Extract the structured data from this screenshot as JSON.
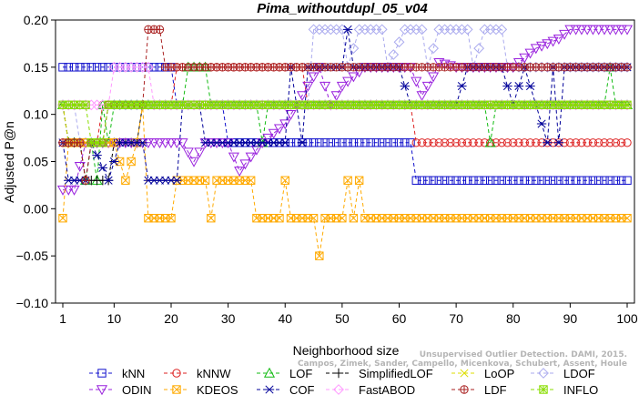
{
  "chart_data": {
    "type": "line",
    "title": "Pima_withoutdupl_05_v04",
    "xlabel": "Neighborhood size",
    "ylabel": "Adjusted P@n",
    "xlim": [
      0,
      101
    ],
    "ylim": [
      -0.1,
      0.2
    ],
    "xticks": [
      1,
      10,
      20,
      30,
      40,
      50,
      60,
      70,
      80,
      90,
      100
    ],
    "yticks": [
      -0.1,
      -0.05,
      0.0,
      0.05,
      0.1,
      0.15,
      0.2
    ],
    "ytick_labels": [
      "−0.10",
      "−0.05",
      "0.00",
      "0.05",
      "0.10",
      "0.15",
      "0.20"
    ],
    "legend_position": "bottom",
    "watermark": {
      "line1": "Unsupervised Outlier Detection. DAMI, 2015.",
      "line2": "Campos, Zimek, Sander, Campello, Micenkova, Schubert, Assent, Houle"
    },
    "series": [
      {
        "name": "kNN",
        "color": "#1111cc",
        "marker": "square",
        "points": [
          [
            1,
            0.15
          ],
          [
            20,
            0.15
          ],
          [
            21,
            0.11
          ],
          [
            29,
            0.11
          ],
          [
            30,
            0.07
          ],
          [
            62,
            0.07
          ],
          [
            63,
            0.03
          ],
          [
            100,
            0.03
          ]
        ]
      },
      {
        "name": "kNNW",
        "color": "#dd2222",
        "marker": "circle",
        "points": [
          [
            1,
            0.07
          ],
          [
            7,
            0.07
          ],
          [
            8,
            0.11
          ],
          [
            20,
            0.11
          ],
          [
            21,
            0.15
          ],
          [
            43,
            0.15
          ],
          [
            44,
            0.11
          ],
          [
            62,
            0.11
          ],
          [
            63,
            0.07
          ],
          [
            100,
            0.07
          ]
        ]
      },
      {
        "name": "LOF",
        "color": "#11bb11",
        "marker": "triangle-up",
        "points": [
          [
            1,
            0.11
          ],
          [
            2,
            0.07
          ],
          [
            4,
            0.07
          ],
          [
            5,
            0.03
          ],
          [
            6,
            0.07
          ],
          [
            7,
            0.03
          ],
          [
            8,
            0.11
          ],
          [
            9,
            0.07
          ],
          [
            10,
            0.11
          ],
          [
            22,
            0.11
          ],
          [
            23,
            0.15
          ],
          [
            26,
            0.15
          ],
          [
            27,
            0.11
          ],
          [
            35,
            0.11
          ],
          [
            36,
            0.07
          ],
          [
            37,
            0.11
          ],
          [
            75,
            0.11
          ],
          [
            76,
            0.07
          ],
          [
            77,
            0.11
          ],
          [
            96,
            0.11
          ],
          [
            97,
            0.15
          ],
          [
            98,
            0.11
          ],
          [
            100,
            0.11
          ]
        ]
      },
      {
        "name": "SimplifiedLOF",
        "color": "#000000",
        "marker": "plus",
        "points": [
          [
            1,
            0.11
          ],
          [
            2,
            0.07
          ],
          [
            4,
            0.07
          ],
          [
            5,
            0.03
          ],
          [
            9,
            0.03
          ],
          [
            10,
            0.07
          ],
          [
            14,
            0.07
          ],
          [
            15,
            0.11
          ],
          [
            100,
            0.11
          ]
        ]
      },
      {
        "name": "LoOP",
        "color": "#dddd00",
        "marker": "cross",
        "points": [
          [
            1,
            0.11
          ],
          [
            2,
            0.07
          ],
          [
            8,
            0.07
          ],
          [
            9,
            0.11
          ],
          [
            100,
            0.11
          ]
        ]
      },
      {
        "name": "LDOF",
        "color": "#aaaaee",
        "marker": "diamond",
        "points": [
          [
            1,
            0.11
          ],
          [
            3,
            0.11
          ],
          [
            4,
            0.07
          ],
          [
            8,
            0.07
          ],
          [
            9,
            0.11
          ],
          [
            44,
            0.11
          ],
          [
            45,
            0.19
          ],
          [
            50,
            0.19
          ],
          [
            51,
            0.15
          ],
          [
            53,
            0.19
          ],
          [
            57,
            0.19
          ],
          [
            58,
            0.15
          ],
          [
            61,
            0.19
          ],
          [
            64,
            0.19
          ],
          [
            65,
            0.15
          ],
          [
            67,
            0.19
          ],
          [
            72,
            0.19
          ],
          [
            73,
            0.15
          ],
          [
            75,
            0.19
          ],
          [
            78,
            0.19
          ],
          [
            79,
            0.15
          ],
          [
            100,
            0.15
          ]
        ]
      },
      {
        "name": "ODIN",
        "color": "#9922dd",
        "marker": "triangle-down",
        "points": [
          [
            1,
            0.02
          ],
          [
            2,
            0.02
          ],
          [
            3,
            0.02
          ],
          [
            5,
            0.07
          ],
          [
            8,
            0.07
          ],
          [
            10,
            0.07
          ],
          [
            14,
            0.07
          ],
          [
            20,
            0.07
          ],
          [
            22,
            0.07
          ],
          [
            24,
            0.05
          ],
          [
            26,
            0.07
          ],
          [
            30,
            0.07
          ],
          [
            32,
            0.04
          ],
          [
            34,
            0.055
          ],
          [
            36,
            0.07
          ],
          [
            38,
            0.08
          ],
          [
            40,
            0.09
          ],
          [
            42,
            0.11
          ],
          [
            44,
            0.13
          ],
          [
            46,
            0.15
          ],
          [
            48,
            0.11
          ],
          [
            50,
            0.13
          ],
          [
            52,
            0.14
          ],
          [
            54,
            0.15
          ],
          [
            58,
            0.15
          ],
          [
            60,
            0.15
          ],
          [
            62,
            0.15
          ],
          [
            64,
            0.12
          ],
          [
            66,
            0.14
          ],
          [
            67,
            0.155
          ],
          [
            70,
            0.15
          ],
          [
            80,
            0.15
          ],
          [
            84,
            0.17
          ],
          [
            88,
            0.18
          ],
          [
            90,
            0.19
          ],
          [
            100,
            0.19
          ]
        ]
      },
      {
        "name": "KDEOS",
        "color": "#ffaa00",
        "marker": "square-x",
        "points": [
          [
            1,
            -0.01
          ],
          [
            2,
            0.07
          ],
          [
            10,
            0.07
          ],
          [
            12,
            0.03
          ],
          [
            14,
            0.07
          ],
          [
            15,
            0.11
          ],
          [
            16,
            -0.01
          ],
          [
            20,
            -0.01
          ],
          [
            21,
            0.03
          ],
          [
            26,
            0.03
          ],
          [
            27,
            -0.01
          ],
          [
            28,
            0.03
          ],
          [
            34,
            0.03
          ],
          [
            35,
            -0.01
          ],
          [
            39,
            -0.01
          ],
          [
            40,
            0.03
          ],
          [
            41,
            -0.01
          ],
          [
            45,
            -0.01
          ],
          [
            46,
            -0.05
          ],
          [
            47,
            -0.01
          ],
          [
            50,
            -0.01
          ],
          [
            51,
            0.03
          ],
          [
            52,
            -0.01
          ],
          [
            53,
            0.03
          ],
          [
            54,
            -0.01
          ],
          [
            100,
            -0.01
          ]
        ]
      },
      {
        "name": "COF",
        "color": "#000099",
        "marker": "asterisk",
        "points": [
          [
            1,
            0.07
          ],
          [
            2,
            0.03
          ],
          [
            5,
            0.03
          ],
          [
            6,
            0.07
          ],
          [
            9,
            0.03
          ],
          [
            11,
            0.07
          ],
          [
            15,
            0.07
          ],
          [
            16,
            0.03
          ],
          [
            21,
            0.03
          ],
          [
            22,
            0.11
          ],
          [
            25,
            0.11
          ],
          [
            26,
            0.07
          ],
          [
            30,
            0.07
          ],
          [
            40,
            0.07
          ],
          [
            41,
            0.15
          ],
          [
            42,
            0.11
          ],
          [
            43,
            0.07
          ],
          [
            44,
            0.15
          ],
          [
            50,
            0.15
          ],
          [
            51,
            0.19
          ],
          [
            52,
            0.15
          ],
          [
            60,
            0.15
          ],
          [
            62,
            0.11
          ],
          [
            70,
            0.11
          ],
          [
            72,
            0.15
          ],
          [
            78,
            0.15
          ],
          [
            80,
            0.11
          ],
          [
            82,
            0.15
          ],
          [
            86,
            0.07
          ],
          [
            87,
            0.15
          ],
          [
            88,
            0.07
          ],
          [
            89,
            0.15
          ],
          [
            100,
            0.15
          ]
        ]
      },
      {
        "name": "FastABOD",
        "color": "#ff99ff",
        "marker": "diamond",
        "points": [
          [
            1,
            0.11
          ],
          [
            9,
            0.11
          ],
          [
            10,
            0.15
          ],
          [
            16,
            0.15
          ],
          [
            17,
            0.11
          ],
          [
            100,
            0.11
          ]
        ]
      },
      {
        "name": "LDF",
        "color": "#aa2222",
        "marker": "circle-plus",
        "points": [
          [
            1,
            0.07
          ],
          [
            4,
            0.07
          ],
          [
            5,
            0.03
          ],
          [
            6,
            0.07
          ],
          [
            8,
            0.07
          ],
          [
            9,
            0.11
          ],
          [
            15,
            0.11
          ],
          [
            16,
            0.19
          ],
          [
            18,
            0.19
          ],
          [
            19,
            0.15
          ],
          [
            100,
            0.15
          ]
        ]
      },
      {
        "name": "INFLO",
        "color": "#88dd00",
        "marker": "square-asterisk",
        "points": [
          [
            1,
            0.11
          ],
          [
            5,
            0.11
          ],
          [
            6,
            0.07
          ],
          [
            8,
            0.07
          ],
          [
            9,
            0.11
          ],
          [
            100,
            0.11
          ]
        ]
      }
    ],
    "legend_order": [
      "kNN",
      "kNNW",
      "LOF",
      "SimplifiedLOF",
      "LoOP",
      "LDOF",
      "ODIN",
      "KDEOS",
      "COF",
      "FastABOD",
      "LDF",
      "INFLO"
    ]
  }
}
